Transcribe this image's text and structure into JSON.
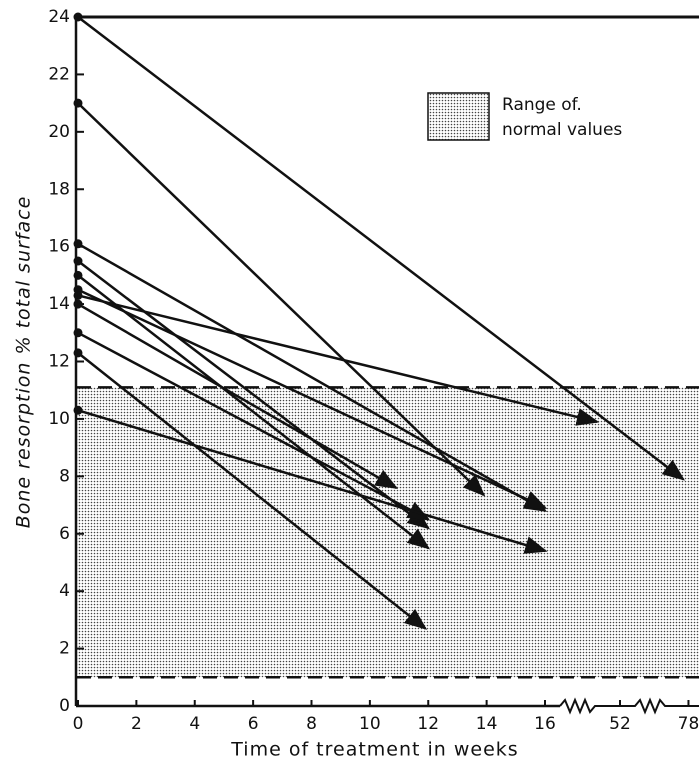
{
  "chart_data": {
    "type": "arrows",
    "x_label": "Time of treatment in weeks",
    "y_label": "Bone resorption % total surface",
    "legend_lines": [
      "Range of.",
      "normal values"
    ],
    "normal_range": [
      1.0,
      11.1
    ],
    "xlim": [
      0,
      82
    ],
    "x_break": [
      16,
      52
    ],
    "xticks": [
      0,
      2,
      4,
      6,
      8,
      10,
      12,
      14,
      16,
      52,
      78
    ],
    "ylim": [
      0,
      24
    ],
    "yticks": [
      0,
      2,
      4,
      6,
      8,
      10,
      12,
      14,
      16,
      18,
      20,
      22,
      24
    ],
    "color": "#111",
    "series": [
      {
        "x": [
          0,
          76
        ],
        "values": [
          24,
          7.9
        ]
      },
      {
        "x": [
          0,
          13.9
        ],
        "values": [
          21,
          7.35
        ]
      },
      {
        "x": [
          0,
          16.1
        ],
        "values": [
          16.1,
          6.8
        ]
      },
      {
        "x": [
          0,
          12.0
        ],
        "values": [
          15.5,
          6.2
        ]
      },
      {
        "x": [
          0,
          12.0
        ],
        "values": [
          15.0,
          5.5
        ]
      },
      {
        "x": [
          0,
          16.1
        ],
        "values": [
          14.5,
          6.9
        ]
      },
      {
        "x": [
          0,
          41
        ],
        "values": [
          14.3,
          9.9
        ]
      },
      {
        "x": [
          0,
          10.9
        ],
        "values": [
          14.0,
          7.6
        ]
      },
      {
        "x": [
          0,
          12.0
        ],
        "values": [
          13.0,
          6.5
        ]
      },
      {
        "x": [
          0,
          11.9
        ],
        "values": [
          12.3,
          2.7
        ]
      },
      {
        "x": [
          0,
          16.2
        ],
        "values": [
          10.3,
          5.4
        ]
      }
    ]
  }
}
